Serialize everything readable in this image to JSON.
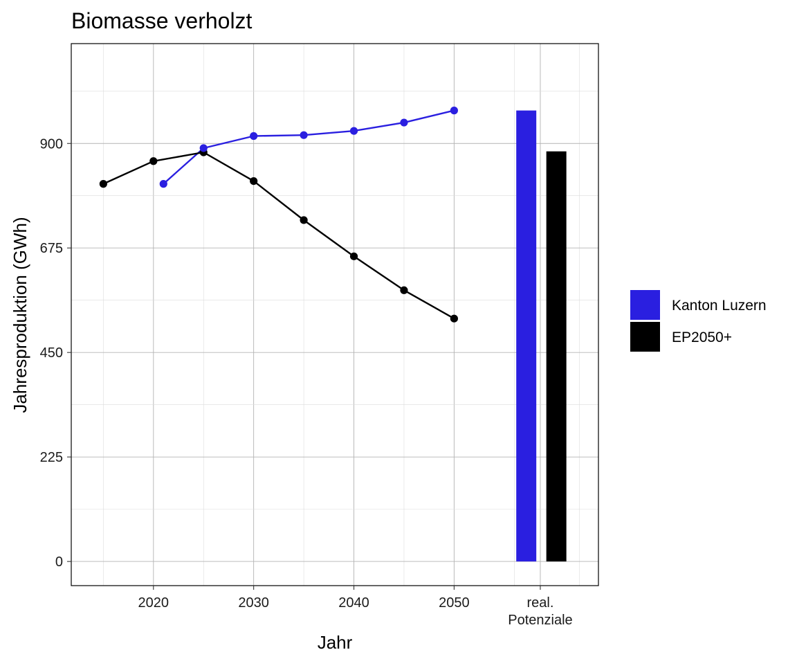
{
  "chart_data": {
    "type": "line",
    "title": "Biomasse verholzt",
    "xlabel": "Jahr",
    "ylabel": "Jahresproduktion (GWh)",
    "x_ticks": [
      "2020",
      "2030",
      "2040",
      "2050"
    ],
    "extra_category": "real.\nPotenziale",
    "y_ticks": [
      "0",
      "225",
      "450",
      "675",
      "900"
    ],
    "ylim": [
      -52,
      1115
    ],
    "xlim": [
      2011.8,
      2064.4
    ],
    "grid": true,
    "legend_position": "right",
    "series": [
      {
        "name": "Kanton Luzern",
        "color": "#2a1fe0",
        "points": [
          {
            "x": 2021,
            "y": 813
          },
          {
            "x": 2025,
            "y": 890
          },
          {
            "x": 2030,
            "y": 916
          },
          {
            "x": 2035,
            "y": 918
          },
          {
            "x": 2040,
            "y": 927
          },
          {
            "x": 2045,
            "y": 945
          },
          {
            "x": 2050,
            "y": 971
          }
        ],
        "potential": 971
      },
      {
        "name": "EP2050+",
        "color": "#000000",
        "points": [
          {
            "x": 2015,
            "y": 813
          },
          {
            "x": 2020,
            "y": 862
          },
          {
            "x": 2025,
            "y": 881
          },
          {
            "x": 2030,
            "y": 819
          },
          {
            "x": 2035,
            "y": 735
          },
          {
            "x": 2040,
            "y": 657
          },
          {
            "x": 2045,
            "y": 584
          },
          {
            "x": 2050,
            "y": 523
          }
        ],
        "potential": 883
      }
    ]
  }
}
